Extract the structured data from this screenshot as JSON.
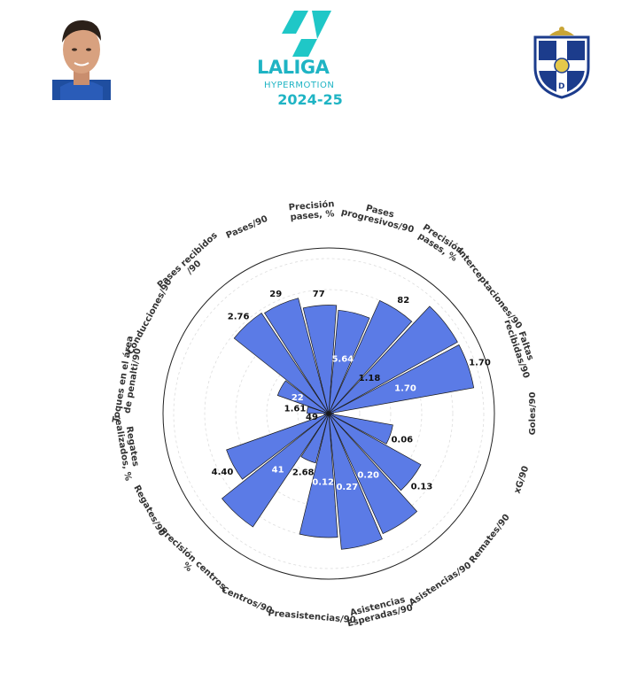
{
  "header": {
    "league_name": "LALIGA",
    "league_sub": "HYPERMOTION",
    "season": "2024-25",
    "accent_color": "#1fb4c4",
    "player_photo_icon": "player-portrait-icon",
    "league_logo_icon": "laliga-logo-icon",
    "club_crest_icon": "cd-tenerife-crest-icon"
  },
  "chart_data": {
    "type": "polar-bar",
    "bar_color": "#5b7be6",
    "grid": true,
    "categories": [
      "Goles/90",
      "xG/90",
      "Remates/90",
      "Asistencias/90",
      "Asistencias\nEsperadas/90",
      "Preasistencias/90",
      "Centros/90",
      "Precisión centros,\n%",
      "Regates/90",
      "Regates\nrealizados, %",
      "Toques en el área\nde penalti/90",
      "Conducciones/90",
      "Pases recibidos\n/90",
      "Pases/90",
      "Precisión\npases, %",
      "Pases\nprogresivos/90",
      "Precisión\npases, %",
      "Interceptaciones/90",
      "Faltas\nrecibidas/90"
    ],
    "percentiles": [
      3,
      42,
      68,
      85,
      88,
      80,
      33,
      88,
      70,
      3,
      14,
      35,
      78,
      77,
      70,
      67,
      80,
      95,
      95
    ],
    "value_labels": [
      "",
      "0.06",
      "0.13",
      "0.20",
      "0.27",
      "0.12",
      "2.68",
      "41",
      "4.40",
      "49",
      "1.61",
      "22",
      "2.76",
      "29",
      "77",
      "5.64",
      "82",
      "",
      "1.70"
    ],
    "inner_labels": [
      "",
      "",
      "",
      "0.20",
      "0.27",
      "0.12",
      "",
      "41",
      "",
      "",
      "",
      "22",
      "",
      "",
      "",
      "5.64",
      "",
      "",
      "1.70"
    ],
    "outer_labels": [
      "",
      "0.06",
      "0.13",
      "",
      "",
      "",
      "2.68",
      "",
      "4.40",
      "49",
      "1.61",
      "",
      "2.76",
      "29",
      "77",
      "",
      "82",
      "",
      "1.70"
    ],
    "extra_labels": [
      "1.18"
    ],
    "rlim": [
      0,
      100
    ]
  }
}
